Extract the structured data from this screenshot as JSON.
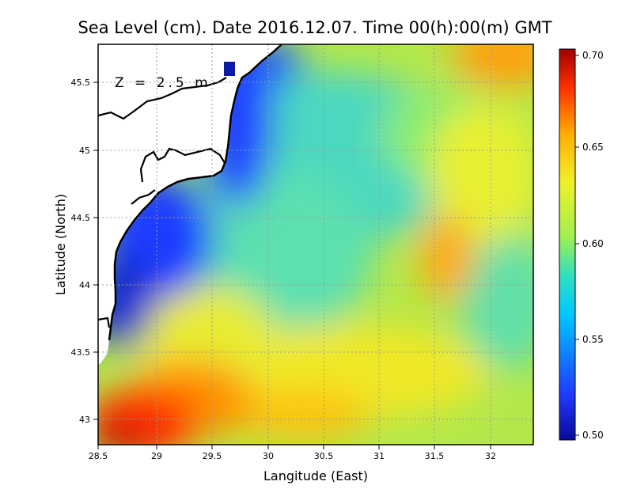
{
  "map": {
    "title": "Sea Level (cm). Date 2016.12.07. Time 00(h):00(m) GMT",
    "depth_label": "Z = 2.5 m",
    "xlabel": "Langitude (East)",
    "ylabel": "Latitude (North)",
    "lon_range": [
      28.5,
      32.4
    ],
    "lat_range": [
      42.8,
      45.8
    ],
    "lon_ticks": [
      "28.5",
      "29",
      "29.5",
      "30",
      "30.5",
      "31",
      "31.5",
      "32"
    ],
    "lat_ticks": [
      "43",
      "43.5",
      "44",
      "44.5",
      "45",
      "45.5"
    ],
    "grid": true
  },
  "colorbar": {
    "min": 0.5,
    "max": 0.7,
    "ticks": [
      "0.50",
      "0.55",
      "0.60",
      "0.65",
      "0.70"
    ],
    "colors": [
      "#0a0a9a",
      "#1e3cff",
      "#00c8ff",
      "#30e0c0",
      "#a0f050",
      "#f0f028",
      "#ffb000",
      "#ff3000",
      "#a00000"
    ]
  }
}
